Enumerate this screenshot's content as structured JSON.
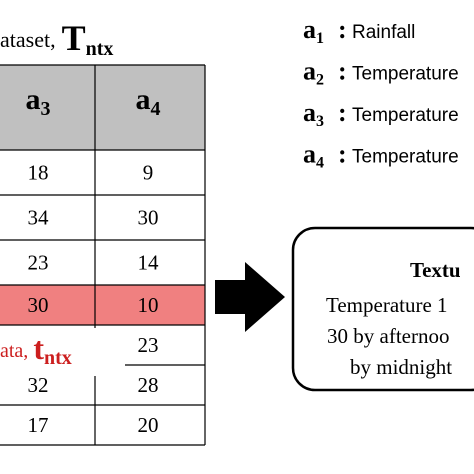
{
  "title": {
    "prefix": "ataset,",
    "symbol": "T",
    "subscript": "ntx"
  },
  "table": {
    "headers": [
      {
        "symbol": "a",
        "subscript": "3"
      },
      {
        "symbol": "a",
        "subscript": "4"
      }
    ],
    "rows": [
      [
        18,
        9
      ],
      [
        34,
        30
      ],
      [
        23,
        14
      ],
      [
        30,
        10
      ],
      [
        null,
        23
      ],
      [
        32,
        28
      ],
      [
        17,
        20
      ]
    ],
    "highlight_row": 3
  },
  "overlay_label": {
    "prefix": "ata,",
    "symbol": "t",
    "subscript": "ntx"
  },
  "legend": [
    {
      "symbol": "a",
      "subscript": "1",
      "label": "Rainfall"
    },
    {
      "symbol": "a",
      "subscript": "2",
      "label": "Temperature"
    },
    {
      "symbol": "a",
      "subscript": "3",
      "label": "Temperature"
    },
    {
      "symbol": "a",
      "subscript": "4",
      "label": "Temperature"
    }
  ],
  "text_box": {
    "title": "Textu",
    "lines": [
      "Temperature 1",
      "30 by afternoo",
      "by midnight"
    ]
  }
}
